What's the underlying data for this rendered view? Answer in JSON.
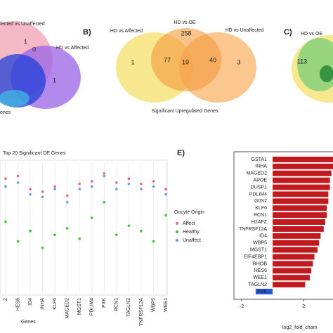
{
  "panels": {
    "a": {
      "texts": [
        "fected vs Unaffected",
        "0",
        "HD vs Affected",
        "1",
        "1",
        "enes"
      ]
    },
    "b": {
      "label": "B)",
      "set_top": "HD vs OE",
      "set_left": "HD vs Affected",
      "set_right": "HD vs Unaffected",
      "counts": [
        "258",
        "77",
        "19",
        "40",
        "1",
        "3"
      ],
      "caption": "Significant Upregulated Genes"
    },
    "c": {
      "label": "C)",
      "set_top": "HD vs OE",
      "counts": [
        "113"
      ]
    },
    "e": {
      "label": "E)"
    }
  },
  "chart_data": [
    {
      "type": "strip",
      "title": "Top 20 Significant DE Genes",
      "x_label": "Genes",
      "legend_title": "Oocyte Origin",
      "categories": [
        "Z",
        "HES6",
        "ID4",
        "INHA",
        "KLF6",
        "MAGED2",
        "MGST1",
        "PDLIM4",
        "PXK",
        "RCN1",
        "TAGLN2",
        "TNFRSF12A",
        "WBP5",
        "WEE1"
      ],
      "ylim": [
        0,
        100
      ],
      "series": [
        {
          "name": "Affect",
          "color": "#e8677f",
          "values": [
            88,
            90,
            80,
            78,
            82,
            75,
            84,
            86,
            92,
            85,
            88,
            84,
            86,
            80
          ]
        },
        {
          "name": "Healthy",
          "color": "#3ec62e",
          "values": [
            55,
            40,
            48,
            35,
            45,
            50,
            42,
            58,
            70,
            45,
            52,
            48,
            40,
            60
          ]
        },
        {
          "name": "Unaffect",
          "color": "#6a9ae8",
          "values": [
            82,
            85,
            76,
            74,
            80,
            70,
            80,
            82,
            90,
            80,
            84,
            80,
            82,
            76
          ]
        }
      ]
    },
    {
      "type": "hbar",
      "x_label": "log2_fold_cham",
      "categories": [
        "GSTA1",
        "INHA",
        "MAGED2",
        "APOE",
        "DUSP1",
        "PDLIM4",
        "G0S2",
        "KLF6",
        "RCN1",
        "H2AFZ",
        "TNFRSF12A",
        "ID4",
        "WBP5",
        "MGST1",
        "EIF4EBP1",
        "RHOB",
        "HES6",
        "WEE1",
        "TAGLN2",
        "PXK"
      ],
      "values": [
        3.9,
        3.9,
        3.8,
        3.7,
        3.7,
        3.6,
        3.6,
        3.5,
        3.5,
        3.4,
        3.3,
        3.1,
        3.0,
        2.9,
        2.7,
        2.6,
        2.5,
        2.4,
        2.1,
        -1.1
      ],
      "pos_color": "#c0191e",
      "neg_color": "#2456d6",
      "xlim": [
        -2.5,
        3.9
      ],
      "xticks": [
        -2,
        2
      ]
    }
  ]
}
